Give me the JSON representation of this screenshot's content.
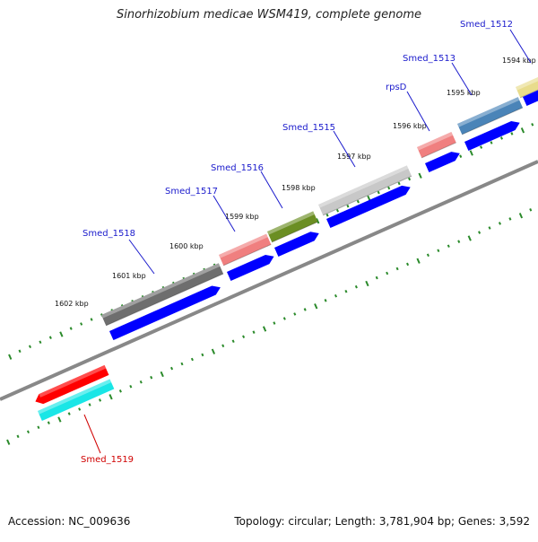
{
  "title": "Sinorhizobium medicae WSM419, complete genome",
  "accession_text": "Accession: NC_009636",
  "summary_text": "Topology: circular; Length: 3,781,904 bp; Genes: 3,592",
  "kbp_labels": [
    "1594 kbp",
    "1595 kbp",
    "1596 kbp",
    "1597 kbp",
    "1598 kbp",
    "1599 kbp",
    "1600 kbp",
    "1601 kbp",
    "1602 kbp"
  ],
  "genes": [
    {
      "name": "Smed_1512",
      "color": "#e8dc8c",
      "label_color": "#1a1acc"
    },
    {
      "name": "Smed_1513",
      "color": "#4a84b8",
      "label_color": "#1a1acc"
    },
    {
      "name": "rpsD",
      "color": "#f07f7f",
      "label_color": "#1a1acc"
    },
    {
      "name": "Smed_1515",
      "color": "#c8c8c8",
      "label_color": "#1a1acc"
    },
    {
      "name": "Smed_1516",
      "color": "#6b8e23",
      "label_color": "#1a1acc"
    },
    {
      "name": "Smed_1517",
      "color": "#f07f7f",
      "label_color": "#1a1acc"
    },
    {
      "name": "Smed_1518",
      "color": "#6e6e6e",
      "label_color": "#1a1acc"
    },
    {
      "name": "Smed_1519",
      "color": "#ff0000",
      "label_color": "#d00000"
    }
  ],
  "colors": {
    "cds_blue": "#0000ff",
    "cds_cyan": "#19e6e6",
    "tick_green": "#2a8a2a",
    "backbone": "#808080"
  }
}
